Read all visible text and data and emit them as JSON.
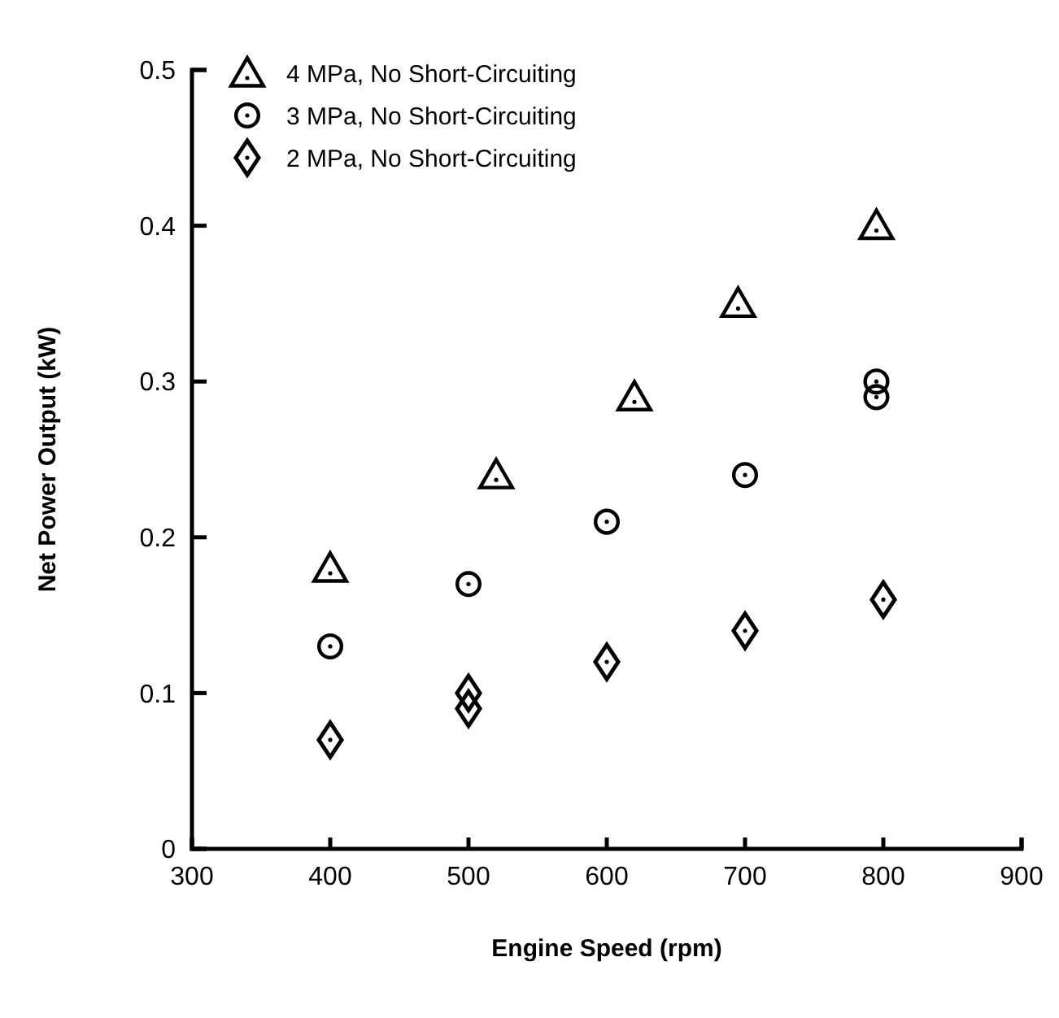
{
  "chart_data": {
    "type": "scatter",
    "xlabel": "Engine Speed (rpm)",
    "ylabel": "Net Power Output (kW)",
    "xlim": [
      300,
      900
    ],
    "xticks": [
      300,
      400,
      500,
      600,
      700,
      800,
      900
    ],
    "ylim": [
      0,
      0.5
    ],
    "yticks": [
      0,
      0.1,
      0.2,
      0.3,
      0.4,
      0.5
    ],
    "grid": false,
    "legend": "top left",
    "series": [
      {
        "name": "4 MPa, No Short-Circuiting",
        "color": "#000000",
        "marker": "triangle",
        "x": [
          400,
          520,
          620,
          695,
          795
        ],
        "values": [
          0.18,
          0.24,
          0.29,
          0.35,
          0.4
        ]
      },
      {
        "name": "3 MPa, No Short-Circuiting",
        "color": "#000000",
        "marker": "circle",
        "x": [
          400,
          500,
          600,
          700,
          795,
          795
        ],
        "values": [
          0.13,
          0.17,
          0.21,
          0.24,
          0.3,
          0.29
        ]
      },
      {
        "name": "2 MPa, No Short-Circuiting",
        "color": "#000000",
        "marker": "diamond",
        "x": [
          400,
          500,
          500,
          600,
          700,
          800
        ],
        "values": [
          0.07,
          0.1,
          0.09,
          0.12,
          0.14,
          0.16
        ]
      }
    ]
  }
}
